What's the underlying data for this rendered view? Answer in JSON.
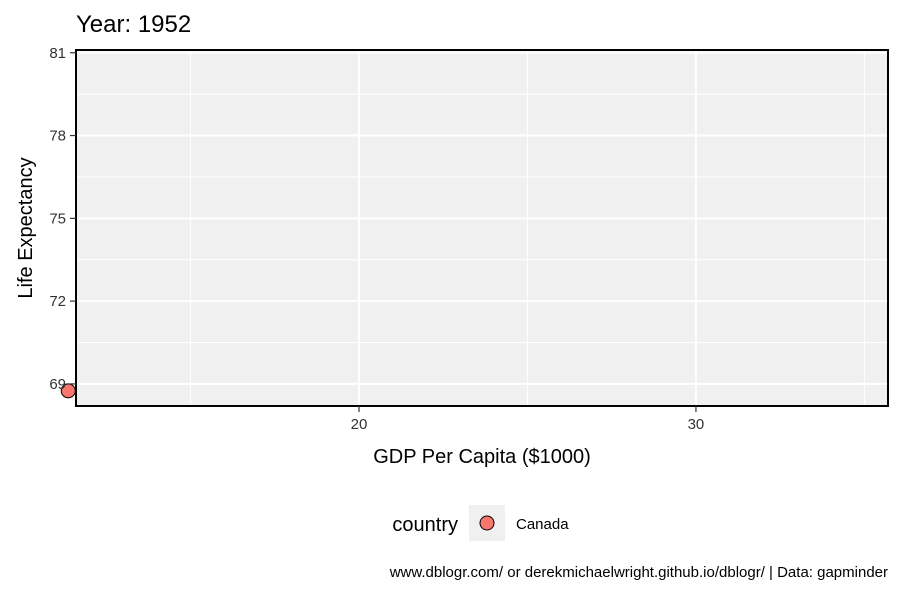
{
  "chart_data": {
    "type": "scatter",
    "title": "Year: 1952",
    "xlabel": "GDP Per Capita ($1000)",
    "ylabel": "Life Expectancy",
    "xlim": [
      11.6,
      35.7
    ],
    "ylim": [
      68.2,
      81.1
    ],
    "x_ticks": [
      20,
      30
    ],
    "y_ticks": [
      69,
      72,
      75,
      78,
      81
    ],
    "grid": true,
    "legend_position": "bottom",
    "legend_title": "country",
    "series": [
      {
        "name": "Canada",
        "color": "#F8766D",
        "points": [
          {
            "x": 11.37,
            "y": 68.75
          }
        ]
      }
    ]
  },
  "caption": "www.dblogr.com/ or derekmichaelwright.github.io/dblogr/ | Data: gapminder"
}
